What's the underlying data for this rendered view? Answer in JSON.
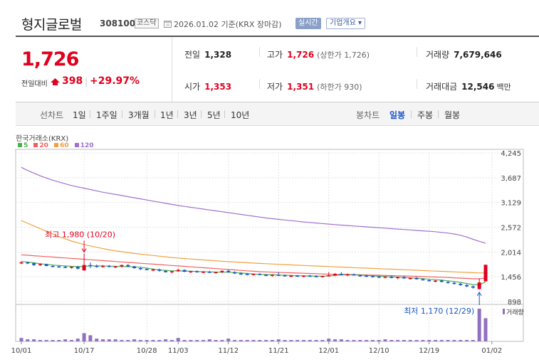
{
  "header": {
    "name": "형지글로벌",
    "code": "308100",
    "market": "코스닥",
    "as_of": "2026.01.02  기준(KRX 장마감)",
    "realtime_label": "실시간",
    "company_label": "기업개요 ▾"
  },
  "price": {
    "current": "1,726",
    "change_label": "전일대비",
    "change_amount": "398",
    "change_separator": "|",
    "change_percent": "+29.97%"
  },
  "stats": {
    "prev_close_label": "전일",
    "prev_close": "1,328",
    "open_label": "시가",
    "open": "1,353",
    "high_label": "고가",
    "high": "1,726",
    "upper_limit": "(상한가 1,726)",
    "low_label": "저가",
    "low": "1,351",
    "lower_limit": "(하한가 930)",
    "volume_label": "거래량",
    "volume": "7,679,646",
    "amount_label": "거래대금",
    "amount": "12,546",
    "amount_unit": "백만"
  },
  "tabs": {
    "line_chart_label": "선차트",
    "periods": [
      "1일",
      "1주일",
      "3개월",
      "1년",
      "3년",
      "5년",
      "10년"
    ],
    "candle_label": "봉차트",
    "candle_periods": [
      "일봉",
      "주봉",
      "월봉"
    ],
    "active_candle": "일봉"
  },
  "chart_source": "한국거래소(KRX)",
  "colors": {
    "up": "#e0001f",
    "down": "#1a55c8",
    "ma5": "#4caf50",
    "ma20": "#f06060",
    "ma60": "#f0a040",
    "ma120": "#a070d0",
    "volume": "#9070c0"
  },
  "chart_data": {
    "type": "candlestick",
    "legend": [
      {
        "name": "5",
        "color": "#4caf50"
      },
      {
        "name": "20",
        "color": "#f06060"
      },
      {
        "name": "60",
        "color": "#f0a040"
      },
      {
        "name": "120",
        "color": "#a070d0"
      }
    ],
    "y_ticks": [
      "4,245",
      "3,687",
      "3,129",
      "2,572",
      "2,014",
      "1,456",
      "898"
    ],
    "y_tick_values": [
      4245,
      3687,
      3129,
      2572,
      2014,
      1456,
      898
    ],
    "ylim": [
      898,
      4245
    ],
    "x_ticks": [
      "10/01",
      "10/17",
      "10/28",
      "11/03",
      "11/12",
      "11/21",
      "12/01",
      "12/10",
      "12/19",
      "01/02"
    ],
    "x_tick_index": [
      0,
      10,
      20,
      25,
      33,
      41,
      49,
      57,
      65,
      75
    ],
    "annotations": [
      {
        "text": "최고 1,980 (10/20)",
        "index": 10,
        "value": 1980,
        "kind": "high"
      },
      {
        "text": "최저 1,170 (12/29)",
        "index": 73,
        "value": 1170,
        "kind": "low"
      }
    ],
    "volume_label": "거래량",
    "candles": [
      [
        1760,
        1800,
        1740,
        1780
      ],
      [
        1780,
        1790,
        1740,
        1760
      ],
      [
        1760,
        1780,
        1700,
        1720
      ],
      [
        1720,
        1760,
        1700,
        1740
      ],
      [
        1740,
        1750,
        1690,
        1700
      ],
      [
        1700,
        1720,
        1670,
        1690
      ],
      [
        1690,
        1710,
        1660,
        1680
      ],
      [
        1680,
        1700,
        1650,
        1670
      ],
      [
        1670,
        1690,
        1640,
        1680
      ],
      [
        1680,
        1700,
        1620,
        1640
      ],
      [
        1600,
        1980,
        1590,
        1720
      ],
      [
        1720,
        1780,
        1650,
        1700
      ],
      [
        1700,
        1730,
        1660,
        1690
      ],
      [
        1690,
        1720,
        1660,
        1700
      ],
      [
        1700,
        1720,
        1670,
        1680
      ],
      [
        1680,
        1700,
        1650,
        1690
      ],
      [
        1690,
        1730,
        1660,
        1720
      ],
      [
        1720,
        1740,
        1670,
        1690
      ],
      [
        1690,
        1700,
        1640,
        1650
      ],
      [
        1650,
        1680,
        1610,
        1630
      ],
      [
        1630,
        1650,
        1600,
        1610
      ],
      [
        1610,
        1640,
        1580,
        1620
      ],
      [
        1620,
        1640,
        1570,
        1590
      ],
      [
        1590,
        1610,
        1550,
        1560
      ],
      [
        1560,
        1590,
        1530,
        1580
      ],
      [
        1580,
        1640,
        1570,
        1610
      ],
      [
        1610,
        1620,
        1560,
        1570
      ],
      [
        1570,
        1590,
        1540,
        1580
      ],
      [
        1580,
        1600,
        1550,
        1560
      ],
      [
        1560,
        1580,
        1540,
        1570
      ],
      [
        1570,
        1590,
        1540,
        1550
      ],
      [
        1550,
        1570,
        1530,
        1560
      ],
      [
        1560,
        1600,
        1540,
        1590
      ],
      [
        1590,
        1610,
        1550,
        1560
      ],
      [
        1560,
        1580,
        1520,
        1530
      ],
      [
        1530,
        1560,
        1500,
        1520
      ],
      [
        1520,
        1540,
        1490,
        1500
      ],
      [
        1500,
        1530,
        1480,
        1520
      ],
      [
        1520,
        1540,
        1490,
        1500
      ],
      [
        1500,
        1520,
        1470,
        1480
      ],
      [
        1480,
        1510,
        1460,
        1500
      ],
      [
        1500,
        1560,
        1480,
        1490
      ],
      [
        1490,
        1510,
        1460,
        1470
      ],
      [
        1470,
        1500,
        1450,
        1480
      ],
      [
        1480,
        1500,
        1460,
        1470
      ],
      [
        1470,
        1490,
        1450,
        1480
      ],
      [
        1480,
        1500,
        1460,
        1470
      ],
      [
        1470,
        1490,
        1450,
        1460
      ],
      [
        1460,
        1480,
        1440,
        1470
      ],
      [
        1470,
        1560,
        1460,
        1490
      ],
      [
        1490,
        1540,
        1470,
        1520
      ],
      [
        1520,
        1560,
        1490,
        1500
      ],
      [
        1500,
        1530,
        1470,
        1510
      ],
      [
        1510,
        1530,
        1480,
        1490
      ],
      [
        1490,
        1510,
        1460,
        1480
      ],
      [
        1480,
        1500,
        1450,
        1470
      ],
      [
        1470,
        1490,
        1440,
        1460
      ],
      [
        1460,
        1480,
        1430,
        1440
      ],
      [
        1440,
        1470,
        1420,
        1460
      ],
      [
        1460,
        1480,
        1420,
        1430
      ],
      [
        1430,
        1460,
        1400,
        1450
      ],
      [
        1450,
        1470,
        1410,
        1420
      ],
      [
        1420,
        1440,
        1390,
        1430
      ],
      [
        1430,
        1450,
        1390,
        1400
      ],
      [
        1400,
        1420,
        1370,
        1380
      ],
      [
        1380,
        1400,
        1350,
        1360
      ],
      [
        1360,
        1380,
        1330,
        1370
      ],
      [
        1370,
        1390,
        1330,
        1340
      ],
      [
        1340,
        1360,
        1300,
        1320
      ],
      [
        1320,
        1340,
        1280,
        1300
      ],
      [
        1300,
        1320,
        1250,
        1270
      ],
      [
        1270,
        1290,
        1220,
        1240
      ],
      [
        1240,
        1260,
        1190,
        1210
      ],
      [
        1180,
        1420,
        1170,
        1328
      ],
      [
        1353,
        1726,
        1351,
        1726
      ]
    ],
    "ma5": [
      1800,
      1790,
      1770,
      1750,
      1735,
      1720,
      1710,
      1700,
      1690,
      1685,
      1690,
      1700,
      1700,
      1698,
      1695,
      1690,
      1688,
      1685,
      1680,
      1670,
      1650,
      1630,
      1610,
      1600,
      1590,
      1588,
      1585,
      1580,
      1575,
      1570,
      1565,
      1562,
      1560,
      1558,
      1550,
      1540,
      1530,
      1520,
      1510,
      1505,
      1500,
      1495,
      1490,
      1485,
      1480,
      1478,
      1475,
      1472,
      1470,
      1475,
      1485,
      1495,
      1500,
      1498,
      1492,
      1485,
      1478,
      1470,
      1462,
      1455,
      1448,
      1440,
      1432,
      1425,
      1415,
      1400,
      1390,
      1380,
      1365,
      1350,
      1330,
      1305,
      1280,
      1275,
      1340
    ],
    "ma20": [
      1950,
      1940,
      1930,
      1920,
      1910,
      1900,
      1890,
      1880,
      1870,
      1860,
      1850,
      1840,
      1830,
      1820,
      1810,
      1800,
      1790,
      1780,
      1770,
      1760,
      1750,
      1740,
      1730,
      1720,
      1710,
      1700,
      1690,
      1680,
      1670,
      1660,
      1650,
      1640,
      1630,
      1620,
      1610,
      1600,
      1590,
      1580,
      1570,
      1565,
      1560,
      1555,
      1550,
      1545,
      1540,
      1535,
      1530,
      1525,
      1520,
      1515,
      1512,
      1510,
      1508,
      1505,
      1500,
      1497,
      1494,
      1490,
      1486,
      1482,
      1478,
      1474,
      1470,
      1466,
      1460,
      1455,
      1450,
      1445,
      1440,
      1432,
      1425,
      1418,
      1410,
      1410,
      1430
    ],
    "ma60": [
      2720,
      2660,
      2600,
      2540,
      2480,
      2420,
      2360,
      2310,
      2260,
      2220,
      2180,
      2150,
      2120,
      2090,
      2060,
      2040,
      2020,
      2000,
      1980,
      1965,
      1950,
      1935,
      1920,
      1905,
      1890,
      1878,
      1866,
      1855,
      1845,
      1835,
      1825,
      1815,
      1805,
      1797,
      1789,
      1781,
      1773,
      1765,
      1757,
      1750,
      1743,
      1736,
      1729,
      1722,
      1716,
      1710,
      1704,
      1698,
      1692,
      1686,
      1680,
      1674,
      1668,
      1662,
      1656,
      1650,
      1644,
      1638,
      1632,
      1626,
      1620,
      1614,
      1608,
      1602,
      1596,
      1590,
      1584,
      1578,
      1572,
      1566,
      1560,
      1554,
      1548,
      1544,
      1545
    ],
    "ma120": [
      3920,
      3850,
      3790,
      3730,
      3680,
      3630,
      3590,
      3550,
      3510,
      3480,
      3450,
      3420,
      3390,
      3360,
      3335,
      3310,
      3285,
      3260,
      3235,
      3210,
      3185,
      3160,
      3135,
      3110,
      3085,
      3060,
      3040,
      3020,
      3000,
      2980,
      2960,
      2940,
      2920,
      2900,
      2880,
      2860,
      2840,
      2820,
      2800,
      2780,
      2765,
      2750,
      2735,
      2720,
      2705,
      2690,
      2678,
      2666,
      2654,
      2642,
      2630,
      2620,
      2610,
      2600,
      2590,
      2580,
      2570,
      2560,
      2550,
      2540,
      2530,
      2520,
      2510,
      2500,
      2490,
      2480,
      2470,
      2455,
      2440,
      2420,
      2390,
      2350,
      2300,
      2255,
      2210
    ],
    "volume": [
      5,
      3,
      3,
      2,
      2,
      2,
      2,
      3,
      2,
      4,
      12,
      9,
      4,
      3,
      3,
      3,
      2,
      2,
      3,
      2,
      2,
      2,
      2,
      3,
      2,
      5,
      2,
      2,
      2,
      2,
      3,
      2,
      2,
      4,
      2,
      2,
      2,
      2,
      2,
      2,
      2,
      3,
      2,
      2,
      2,
      2,
      2,
      2,
      2,
      4,
      3,
      3,
      2,
      2,
      2,
      2,
      2,
      2,
      3,
      2,
      2,
      2,
      2,
      2,
      2,
      2,
      2,
      2,
      2,
      2,
      2,
      2,
      2,
      48,
      34
    ]
  }
}
